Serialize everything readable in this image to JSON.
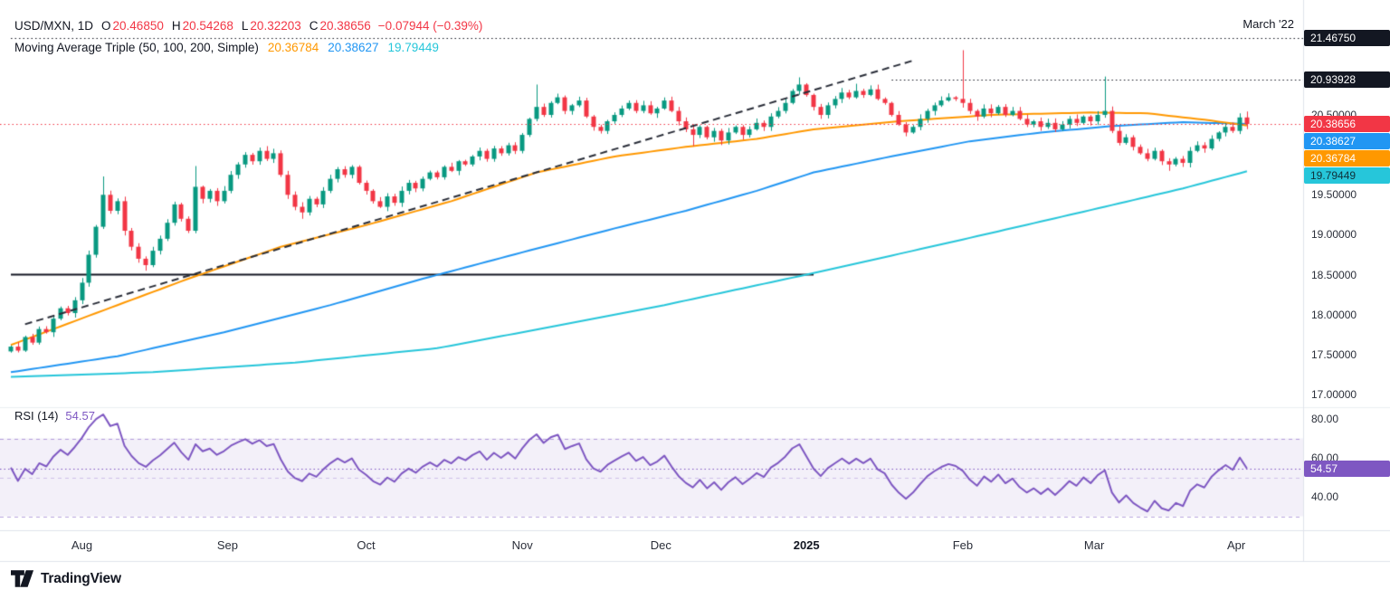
{
  "header": {
    "symbol": "USD/MXN, 1D",
    "ohlc": {
      "o_label": "O",
      "o": "20.46850",
      "h_label": "H",
      "h": "20.54268",
      "l_label": "L",
      "l": "20.32203",
      "c_label": "C",
      "c": "20.38656",
      "change": "−0.07944 (−0.39%)"
    },
    "ma_legend": {
      "label": "Moving Average Triple (50, 100, 200, Simple)",
      "ma50": "20.36784",
      "ma100": "20.38627",
      "ma200": "19.79449"
    }
  },
  "annotations": {
    "march22": "March '22"
  },
  "price_axis": {
    "ticks": [
      "20.50000",
      "19.50000",
      "19.00000",
      "18.50000",
      "18.00000",
      "17.50000",
      "17.00000"
    ],
    "tick_values": [
      20.5,
      19.5,
      19.0,
      18.5,
      18.0,
      17.5,
      17.0
    ],
    "badges": [
      {
        "label": "21.46750",
        "value": 21.4675,
        "bg": "#131722",
        "fg": "#ffffff"
      },
      {
        "label": "20.93928",
        "value": 20.93928,
        "bg": "#131722",
        "fg": "#ffffff"
      },
      {
        "label": "20.38656",
        "value": 20.38656,
        "bg": "#F23645",
        "fg": "#ffffff"
      },
      {
        "label": "20.38627",
        "value": 20.38627,
        "bg": "#2196F3",
        "fg": "#ffffff"
      },
      {
        "label": "20.36784",
        "value": 20.36784,
        "bg": "#FF9800",
        "fg": "#ffffff"
      },
      {
        "label": "19.79449",
        "value": 19.79449,
        "bg": "#26C6DA",
        "fg": "#10313a"
      }
    ]
  },
  "time_axis": {
    "months": [
      {
        "label": "Aug",
        "i": 10
      },
      {
        "label": "Sep",
        "i": 30.5
      },
      {
        "label": "Oct",
        "i": 50
      },
      {
        "label": "Nov",
        "i": 72
      },
      {
        "label": "Dec",
        "i": 91.5
      },
      {
        "label": "2025",
        "i": 112,
        "bold": true
      },
      {
        "label": "Feb",
        "i": 134
      },
      {
        "label": "Mar",
        "i": 152.5
      },
      {
        "label": "Apr",
        "i": 172.5
      }
    ]
  },
  "rsi": {
    "label": "RSI (14)",
    "value_label": "54.57",
    "value": 54.57,
    "ticks": [
      "80.00",
      "60.00",
      "40.00"
    ],
    "tick_values": [
      80,
      60,
      40
    ],
    "badge_bg": "#7E57C2",
    "badge_fg": "#ffffff"
  },
  "footer": {
    "brand": "TradingView"
  },
  "chart_data": {
    "type": "candlestick",
    "symbol": "USD/MXN",
    "interval": "1D",
    "title": "USD/MXN, 1D with Moving Average Triple (50, 100, 200, Simple) and RSI (14)",
    "ylim": [
      16.99,
      21.72
    ],
    "x_labels": [
      "Aug",
      "Sep",
      "Oct",
      "Nov",
      "Dec",
      "2025",
      "Feb",
      "Mar",
      "Apr"
    ],
    "last_bar": {
      "open": 20.4685,
      "high": 20.54268,
      "low": 20.32203,
      "close": 20.38656,
      "change": -0.07944,
      "change_pct": -0.39
    },
    "closes": [
      17.6,
      17.55,
      17.72,
      17.65,
      17.82,
      17.78,
      17.95,
      18.08,
      18.02,
      18.18,
      18.4,
      18.75,
      19.1,
      19.5,
      19.3,
      19.42,
      19.05,
      18.85,
      18.7,
      18.62,
      18.8,
      18.95,
      19.15,
      19.38,
      19.2,
      19.05,
      19.6,
      19.45,
      19.55,
      19.42,
      19.55,
      19.75,
      19.88,
      20.0,
      19.92,
      20.05,
      19.95,
      20.02,
      19.75,
      19.5,
      19.35,
      19.28,
      19.45,
      19.38,
      19.55,
      19.7,
      19.82,
      19.75,
      19.85,
      19.65,
      19.55,
      19.42,
      19.35,
      19.48,
      19.4,
      19.55,
      19.65,
      19.58,
      19.7,
      19.78,
      19.72,
      19.85,
      19.8,
      19.92,
      19.88,
      19.98,
      20.05,
      19.95,
      20.08,
      20.02,
      20.12,
      20.05,
      20.25,
      20.45,
      20.6,
      20.5,
      20.65,
      20.72,
      20.55,
      20.62,
      20.68,
      20.48,
      20.35,
      20.3,
      20.42,
      20.5,
      20.58,
      20.65,
      20.55,
      20.62,
      20.52,
      20.58,
      20.68,
      20.55,
      20.42,
      20.32,
      20.25,
      20.35,
      20.22,
      20.3,
      20.18,
      20.28,
      20.35,
      20.25,
      20.32,
      20.4,
      20.35,
      20.48,
      20.55,
      20.65,
      20.8,
      20.88,
      20.75,
      20.6,
      20.5,
      20.62,
      20.7,
      20.78,
      20.72,
      20.8,
      20.75,
      20.82,
      20.7,
      20.65,
      20.5,
      20.38,
      20.28,
      20.35,
      20.45,
      20.55,
      20.62,
      20.68,
      20.72,
      20.7,
      20.65,
      20.55,
      20.48,
      20.58,
      20.52,
      20.6,
      20.5,
      20.55,
      20.45,
      20.38,
      20.42,
      20.35,
      20.4,
      20.32,
      20.38,
      20.45,
      20.4,
      20.48,
      20.42,
      20.5,
      20.55,
      20.3,
      20.15,
      20.22,
      20.1,
      20.02,
      19.95,
      20.05,
      19.92,
      19.88,
      19.95,
      19.9,
      20.05,
      20.12,
      20.08,
      20.2,
      20.28,
      20.35,
      20.3,
      20.4685,
      20.38656
    ],
    "wick_overrides": {
      "13": {
        "h": 19.73
      },
      "19": {
        "l": 18.55
      },
      "26": {
        "h": 19.86
      },
      "41": {
        "l": 19.2
      },
      "74": {
        "h": 20.88
      },
      "96": {
        "l": 20.11
      },
      "111": {
        "h": 20.97
      },
      "119": {
        "h": 20.89
      },
      "134": {
        "h": 21.31
      },
      "154": {
        "h": 20.98
      },
      "163": {
        "l": 19.8
      },
      "174": {
        "h": 20.54268,
        "l": 20.32203
      }
    },
    "moving_averages": {
      "ma50": {
        "period": 50,
        "last": 20.36784,
        "keypoints": [
          [
            0,
            17.62
          ],
          [
            12,
            18.02
          ],
          [
            25,
            18.45
          ],
          [
            38,
            18.85
          ],
          [
            50,
            19.12
          ],
          [
            62,
            19.42
          ],
          [
            74,
            19.78
          ],
          [
            85,
            19.98
          ],
          [
            95,
            20.1
          ],
          [
            105,
            20.2
          ],
          [
            113,
            20.32
          ],
          [
            125,
            20.42
          ],
          [
            138,
            20.5
          ],
          [
            152,
            20.53
          ],
          [
            160,
            20.52
          ],
          [
            168,
            20.44
          ],
          [
            174,
            20.368
          ]
        ]
      },
      "ma100": {
        "period": 100,
        "last": 20.38627,
        "keypoints": [
          [
            0,
            17.28
          ],
          [
            15,
            17.48
          ],
          [
            30,
            17.78
          ],
          [
            45,
            18.12
          ],
          [
            58,
            18.45
          ],
          [
            72,
            18.78
          ],
          [
            85,
            19.08
          ],
          [
            95,
            19.3
          ],
          [
            105,
            19.55
          ],
          [
            113,
            19.78
          ],
          [
            125,
            20.0
          ],
          [
            135,
            20.17
          ],
          [
            145,
            20.28
          ],
          [
            155,
            20.36
          ],
          [
            165,
            20.41
          ],
          [
            174,
            20.386
          ]
        ]
      },
      "ma200": {
        "period": 200,
        "last": 19.79449,
        "keypoints": [
          [
            0,
            17.22
          ],
          [
            20,
            17.28
          ],
          [
            40,
            17.4
          ],
          [
            60,
            17.58
          ],
          [
            72,
            17.78
          ],
          [
            92,
            18.12
          ],
          [
            113,
            18.52
          ],
          [
            133,
            18.92
          ],
          [
            153,
            19.33
          ],
          [
            165,
            19.58
          ],
          [
            174,
            19.794
          ]
        ]
      }
    },
    "levels": [
      {
        "label": "March '22",
        "value": 21.4675,
        "from_index": 0,
        "style": "dotted"
      },
      {
        "label": "",
        "value": 20.93928,
        "from_index": 124,
        "style": "dotted"
      }
    ],
    "current_price": 20.38656,
    "support_line": {
      "level": 18.5,
      "from_index": 0,
      "to_index": 113,
      "style": "solid"
    },
    "trendline": {
      "from": [
        2,
        17.88
      ],
      "to": [
        127,
        21.18
      ],
      "style": "dashed"
    },
    "rsi_panel": {
      "type": "line",
      "period": 14,
      "last": 54.57,
      "upper": 70,
      "lower": 30,
      "middle": 50,
      "ylim": [
        20,
        88
      ]
    },
    "colors": {
      "up": "#089981",
      "down": "#F23645",
      "ma50": "#FF9800",
      "ma100": "#2196F3",
      "ma200": "#26C6DA",
      "rsi": "#7E57C2",
      "level": "#131722",
      "trend": "#2a2e39",
      "current": "#F23645"
    }
  }
}
